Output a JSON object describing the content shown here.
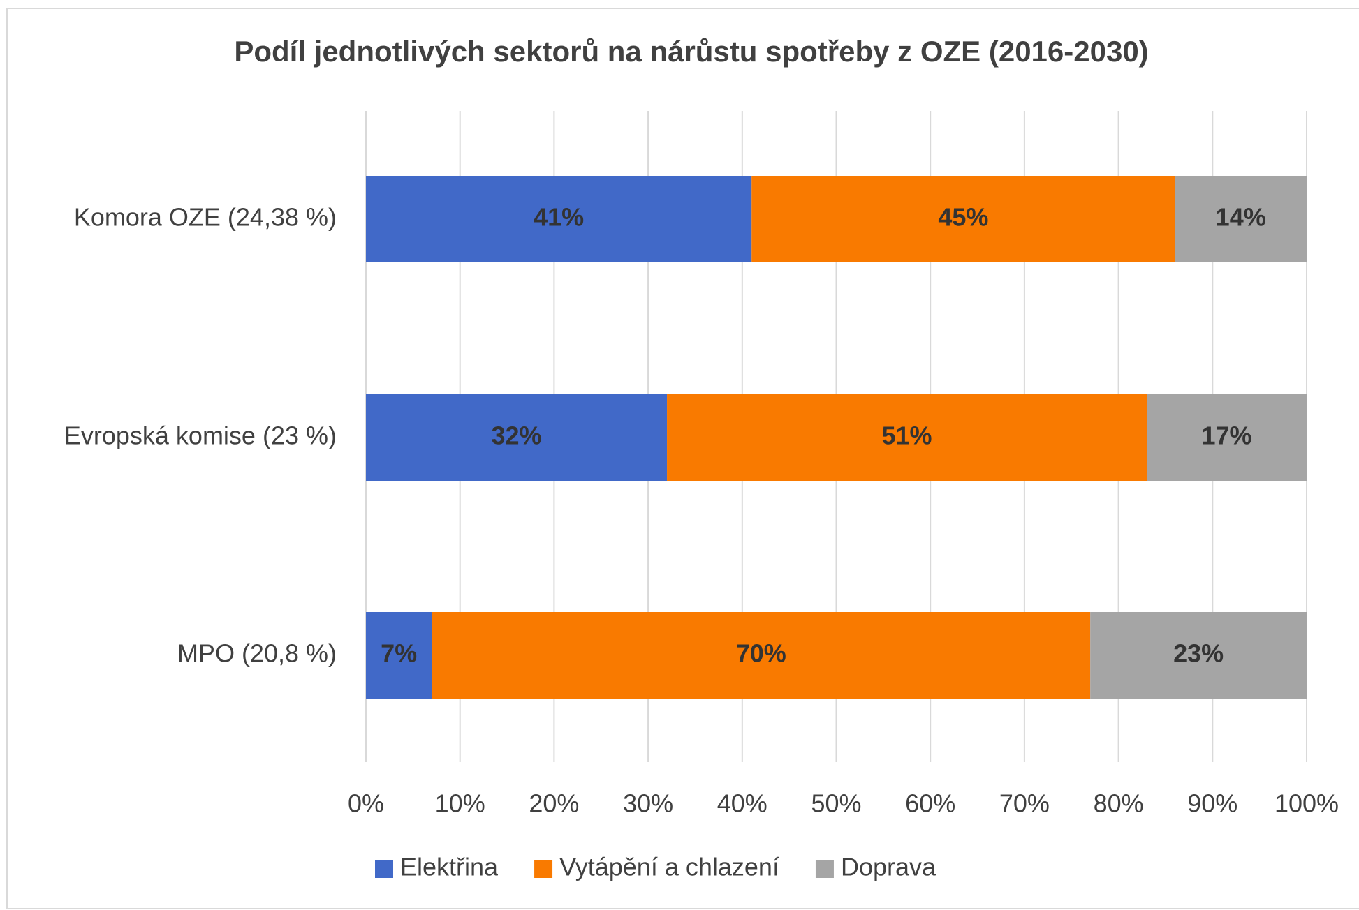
{
  "chart_data": {
    "type": "stacked_barh",
    "title": "Podíl jednotlivých sektorů na nárůstu spotřeby z OZE (2016-2030)",
    "categories": [
      "Komora OZE (24,38 %)",
      "Evropská komise (23 %)",
      "MPO (20,8 %)"
    ],
    "series": [
      {
        "name": "Elektřina",
        "color": "#4169c8",
        "values": [
          41,
          32,
          7
        ],
        "value_labels": [
          "41%",
          "32%",
          "7%"
        ]
      },
      {
        "name": "Vytápění a chlazení",
        "color": "#f97a00",
        "values": [
          45,
          51,
          70
        ],
        "value_labels": [
          "45%",
          "51%",
          "70%"
        ]
      },
      {
        "name": "Doprava",
        "color": "#a5a5a5",
        "values": [
          14,
          17,
          23
        ],
        "value_labels": [
          "14%",
          "17%",
          "23%"
        ]
      }
    ],
    "xlim": [
      0,
      100
    ],
    "xticks": [
      {
        "value": 0,
        "label": "0%"
      },
      {
        "value": 10,
        "label": "10%"
      },
      {
        "value": 20,
        "label": "20%"
      },
      {
        "value": 30,
        "label": "30%"
      },
      {
        "value": 40,
        "label": "40%"
      },
      {
        "value": 50,
        "label": "50%"
      },
      {
        "value": 60,
        "label": "60%"
      },
      {
        "value": 70,
        "label": "70%"
      },
      {
        "value": 80,
        "label": "80%"
      },
      {
        "value": 90,
        "label": "90%"
      },
      {
        "value": 100,
        "label": "100%"
      }
    ],
    "grid": true,
    "legend": "bottom"
  }
}
